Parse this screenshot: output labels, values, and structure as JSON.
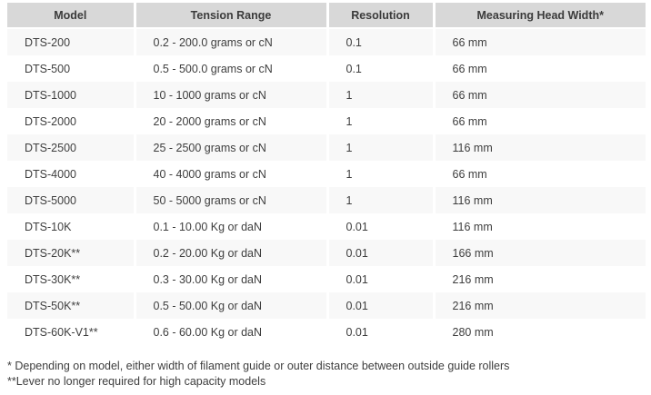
{
  "colors": {
    "header_bg": "#d8d8d8",
    "header_text": "#3b3b3b",
    "row_alt_bg": "#f8f8f8",
    "row_bg": "#ffffff",
    "body_text": "#3e3e3e",
    "cell_separator": "#ffffff"
  },
  "table": {
    "columns": [
      "Model",
      "Tension Range",
      "Resolution",
      "Measuring Head Width*"
    ],
    "rows": [
      {
        "model": "DTS-200",
        "tension_range": "0.2 - 200.0 grams or cN",
        "resolution": "0.1",
        "head_width": "66 mm"
      },
      {
        "model": "DTS-500",
        "tension_range": "0.5 - 500.0 grams or cN",
        "resolution": "0.1",
        "head_width": "66 mm"
      },
      {
        "model": "DTS-1000",
        "tension_range": "10 - 1000 grams or cN",
        "resolution": "1",
        "head_width": "66 mm"
      },
      {
        "model": "DTS-2000",
        "tension_range": "20 - 2000 grams or cN",
        "resolution": "1",
        "head_width": "66 mm"
      },
      {
        "model": "DTS-2500",
        "tension_range": "25 - 2500 grams or cN",
        "resolution": "1",
        "head_width": "116 mm"
      },
      {
        "model": "DTS-4000",
        "tension_range": "40 - 4000 grams or cN",
        "resolution": "1",
        "head_width": "66 mm"
      },
      {
        "model": "DTS-5000",
        "tension_range": "50 - 5000 grams or cN",
        "resolution": "1",
        "head_width": "116 mm"
      },
      {
        "model": "DTS-10K",
        "tension_range": "0.1 - 10.00 Kg or daN",
        "resolution": "0.01",
        "head_width": "116 mm"
      },
      {
        "model": "DTS-20K**",
        "tension_range": "0.2 - 20.00 Kg or daN",
        "resolution": "0.01",
        "head_width": "166 mm"
      },
      {
        "model": "DTS-30K**",
        "tension_range": "0.3 - 30.00 Kg or daN",
        "resolution": "0.01",
        "head_width": "216 mm"
      },
      {
        "model": "DTS-50K**",
        "tension_range": "0.5 - 50.00 Kg or daN",
        "resolution": "0.01",
        "head_width": "216 mm"
      },
      {
        "model": "DTS-60K-V1**",
        "tension_range": "0.6 - 60.00 Kg or daN",
        "resolution": "0.01",
        "head_width": "280 mm"
      }
    ]
  },
  "footnotes": [
    "* Depending on model, either width of filament guide or outer distance between outside guide rollers",
    "**Lever no longer required for high capacity models"
  ]
}
